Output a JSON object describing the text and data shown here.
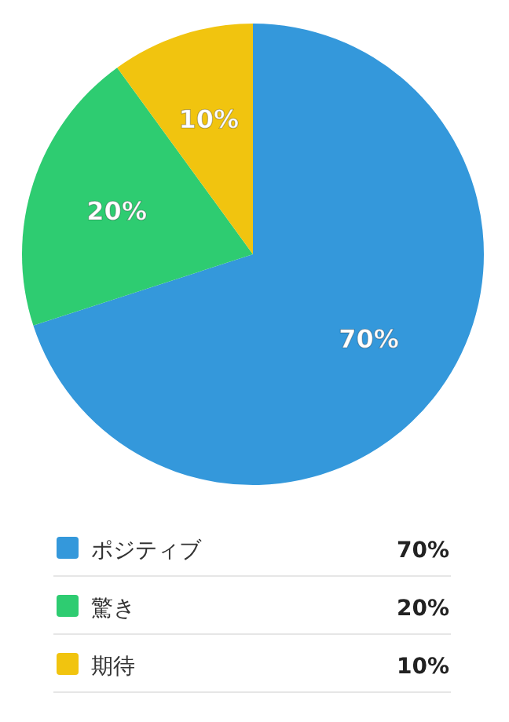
{
  "chart_data": {
    "type": "pie",
    "categories": [
      "ポジティブ",
      "驚き",
      "期待"
    ],
    "values": [
      70,
      20,
      10
    ],
    "colors": [
      "#3498db",
      "#2ecc71",
      "#f1c40f"
    ],
    "value_labels": [
      "70%",
      "20%",
      "10%"
    ],
    "legend": "bottom"
  }
}
